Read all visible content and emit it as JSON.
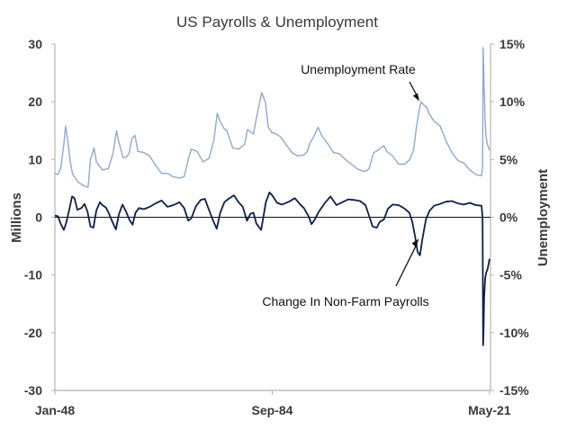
{
  "chart_data": {
    "type": "line",
    "title": "US Payrolls & Unemployment",
    "xlabel": "",
    "ylabel_left": "Millions",
    "ylabel_right": "Unemployment",
    "ylim_left": [
      -30,
      30
    ],
    "ylim_right": [
      -15,
      15
    ],
    "yticks_left": [
      "30",
      "20",
      "10",
      "0",
      "-10",
      "-20",
      "-30"
    ],
    "yticks_right": [
      "15%",
      "10%",
      "5%",
      "0%",
      "-5%",
      "-10%",
      "-15%"
    ],
    "x_ticks": [
      "Jan-48",
      "Sep-84",
      "May-21"
    ],
    "x_tick_years": [
      1948,
      1984.67,
      2021.33
    ],
    "x_range": [
      1948,
      2021.5
    ],
    "grid": false,
    "colors": {
      "unemployment": "#8fa8d2",
      "payrolls": "#0c1f4a",
      "axis": "#b3b3b3"
    },
    "annotations": [
      {
        "text": "Unemployment Rate",
        "x": 2009.8,
        "y": 9.9,
        "axis": "right"
      },
      {
        "text": "Change In Non-Farm Payrolls",
        "x": 2009.3,
        "y": -3.4,
        "axis": "left"
      }
    ],
    "series": [
      {
        "name": "Unemployment Rate",
        "axis": "right",
        "points": [
          [
            1948,
            3.8
          ],
          [
            1948.5,
            3.7
          ],
          [
            1949,
            4.3
          ],
          [
            1949.5,
            6.3
          ],
          [
            1949.8,
            7.9
          ],
          [
            1950.2,
            6.5
          ],
          [
            1950.6,
            4.8
          ],
          [
            1951,
            3.7
          ],
          [
            1952,
            3.0
          ],
          [
            1953,
            2.7
          ],
          [
            1953.6,
            2.6
          ],
          [
            1954,
            5.0
          ],
          [
            1954.6,
            6.0
          ],
          [
            1955,
            4.8
          ],
          [
            1956,
            4.1
          ],
          [
            1957,
            4.2
          ],
          [
            1957.8,
            5.5
          ],
          [
            1958.4,
            7.5
          ],
          [
            1958.8,
            6.5
          ],
          [
            1959.5,
            5.2
          ],
          [
            1960,
            5.2
          ],
          [
            1960.5,
            5.5
          ],
          [
            1961,
            6.8
          ],
          [
            1961.5,
            7.1
          ],
          [
            1962,
            5.7
          ],
          [
            1963,
            5.6
          ],
          [
            1964,
            5.3
          ],
          [
            1965,
            4.5
          ],
          [
            1966,
            3.8
          ],
          [
            1967,
            3.8
          ],
          [
            1968,
            3.5
          ],
          [
            1969,
            3.4
          ],
          [
            1969.8,
            3.5
          ],
          [
            1970.5,
            5.0
          ],
          [
            1971,
            5.9
          ],
          [
            1972,
            5.7
          ],
          [
            1973,
            4.8
          ],
          [
            1974,
            5.1
          ],
          [
            1974.8,
            6.6
          ],
          [
            1975.4,
            9.0
          ],
          [
            1975.8,
            8.4
          ],
          [
            1976.5,
            7.7
          ],
          [
            1977,
            7.5
          ],
          [
            1978,
            6.0
          ],
          [
            1979,
            5.9
          ],
          [
            1980,
            6.3
          ],
          [
            1980.5,
            7.6
          ],
          [
            1981,
            7.4
          ],
          [
            1981.5,
            7.2
          ],
          [
            1982,
            8.6
          ],
          [
            1982.9,
            10.8
          ],
          [
            1983.5,
            10.0
          ],
          [
            1984,
            7.8
          ],
          [
            1984.67,
            7.3
          ],
          [
            1985,
            7.3
          ],
          [
            1986,
            7.0
          ],
          [
            1987,
            6.3
          ],
          [
            1988,
            5.6
          ],
          [
            1989,
            5.3
          ],
          [
            1990,
            5.4
          ],
          [
            1990.6,
            5.7
          ],
          [
            1991,
            6.4
          ],
          [
            1991.6,
            6.9
          ],
          [
            1992.4,
            7.8
          ],
          [
            1993,
            7.1
          ],
          [
            1994,
            6.4
          ],
          [
            1995,
            5.6
          ],
          [
            1996,
            5.5
          ],
          [
            1997,
            5.0
          ],
          [
            1998,
            4.6
          ],
          [
            1999,
            4.2
          ],
          [
            2000,
            4.0
          ],
          [
            2000.5,
            4.0
          ],
          [
            2001,
            4.2
          ],
          [
            2001.8,
            5.6
          ],
          [
            2002.5,
            5.8
          ],
          [
            2003.5,
            6.2
          ],
          [
            2004,
            5.7
          ],
          [
            2005,
            5.3
          ],
          [
            2006,
            4.6
          ],
          [
            2007,
            4.6
          ],
          [
            2007.9,
            5.0
          ],
          [
            2008.5,
            5.8
          ],
          [
            2009,
            7.8
          ],
          [
            2009.5,
            9.4
          ],
          [
            2009.8,
            10.0
          ],
          [
            2010.3,
            9.7
          ],
          [
            2010.8,
            9.5
          ],
          [
            2011,
            9.1
          ],
          [
            2012,
            8.3
          ],
          [
            2013,
            7.9
          ],
          [
            2014,
            6.6
          ],
          [
            2015,
            5.6
          ],
          [
            2016,
            4.9
          ],
          [
            2017,
            4.7
          ],
          [
            2018,
            4.1
          ],
          [
            2019,
            3.7
          ],
          [
            2020,
            3.6
          ],
          [
            2020.17,
            4.4
          ],
          [
            2020.25,
            14.7
          ],
          [
            2020.33,
            13.3
          ],
          [
            2020.42,
            11.1
          ],
          [
            2020.5,
            10.2
          ],
          [
            2020.58,
            8.4
          ],
          [
            2020.75,
            6.9
          ],
          [
            2021,
            6.3
          ],
          [
            2021.33,
            5.8
          ]
        ]
      },
      {
        "name": "Change In Non-Farm Payrolls",
        "axis": "left",
        "points": [
          [
            1948,
            0.3
          ],
          [
            1948.5,
            0.2
          ],
          [
            1949,
            -1.2
          ],
          [
            1949.5,
            -2.2
          ],
          [
            1949.9,
            -1.0
          ],
          [
            1950.4,
            1.2
          ],
          [
            1950.9,
            3.6
          ],
          [
            1951.3,
            3.3
          ],
          [
            1951.8,
            1.3
          ],
          [
            1952.5,
            1.6
          ],
          [
            1953,
            2.3
          ],
          [
            1953.5,
            1.0
          ],
          [
            1954,
            -1.6
          ],
          [
            1954.5,
            -1.8
          ],
          [
            1955,
            1.2
          ],
          [
            1955.6,
            2.6
          ],
          [
            1956,
            2.1
          ],
          [
            1956.6,
            1.7
          ],
          [
            1957,
            0.9
          ],
          [
            1957.7,
            -0.8
          ],
          [
            1958.3,
            -2.1
          ],
          [
            1958.8,
            0.5
          ],
          [
            1959.4,
            2.2
          ],
          [
            1960,
            1.0
          ],
          [
            1960.6,
            -0.5
          ],
          [
            1961.1,
            -1.3
          ],
          [
            1961.6,
            0.8
          ],
          [
            1962.2,
            1.6
          ],
          [
            1963,
            1.4
          ],
          [
            1964,
            1.8
          ],
          [
            1965,
            2.4
          ],
          [
            1966,
            2.9
          ],
          [
            1967,
            1.8
          ],
          [
            1968,
            2.1
          ],
          [
            1969,
            2.6
          ],
          [
            1969.8,
            1.6
          ],
          [
            1970.5,
            -0.6
          ],
          [
            1971,
            -0.2
          ],
          [
            1971.8,
            1.9
          ],
          [
            1972.6,
            3.0
          ],
          [
            1973.3,
            3.2
          ],
          [
            1974,
            1.3
          ],
          [
            1974.7,
            -0.6
          ],
          [
            1975.3,
            -2.0
          ],
          [
            1975.9,
            0.8
          ],
          [
            1976.6,
            2.6
          ],
          [
            1977.3,
            3.2
          ],
          [
            1978.2,
            3.8
          ],
          [
            1979,
            2.6
          ],
          [
            1979.7,
            1.8
          ],
          [
            1980.4,
            -0.6
          ],
          [
            1981,
            0.6
          ],
          [
            1981.5,
            0.8
          ],
          [
            1982,
            -1.1
          ],
          [
            1982.8,
            -2.2
          ],
          [
            1983.6,
            2.6
          ],
          [
            1984.2,
            4.3
          ],
          [
            1984.67,
            3.8
          ],
          [
            1985.5,
            2.5
          ],
          [
            1986.3,
            2.2
          ],
          [
            1987.5,
            2.7
          ],
          [
            1988.5,
            3.3
          ],
          [
            1989.3,
            2.3
          ],
          [
            1990,
            1.6
          ],
          [
            1990.8,
            0.2
          ],
          [
            1991.3,
            -1.2
          ],
          [
            1991.8,
            -0.5
          ],
          [
            1992.5,
            0.9
          ],
          [
            1993.5,
            2.4
          ],
          [
            1994.5,
            3.6
          ],
          [
            1995.5,
            2.1
          ],
          [
            1996.5,
            2.6
          ],
          [
            1997.5,
            3.1
          ],
          [
            1998.5,
            3.0
          ],
          [
            1999.5,
            2.8
          ],
          [
            2000.4,
            2.1
          ],
          [
            2001,
            0.3
          ],
          [
            2001.6,
            -1.6
          ],
          [
            2002.3,
            -1.8
          ],
          [
            2002.8,
            -0.8
          ],
          [
            2003.5,
            -0.4
          ],
          [
            2004.2,
            1.5
          ],
          [
            2005,
            2.2
          ],
          [
            2006,
            2.1
          ],
          [
            2007,
            1.5
          ],
          [
            2007.8,
            0.8
          ],
          [
            2008.3,
            -0.8
          ],
          [
            2008.8,
            -3.5
          ],
          [
            2009.2,
            -6.0
          ],
          [
            2009.6,
            -6.6
          ],
          [
            2010,
            -3.8
          ],
          [
            2010.6,
            -0.4
          ],
          [
            2011.2,
            1.1
          ],
          [
            2012,
            2.0
          ],
          [
            2013,
            2.3
          ],
          [
            2014,
            2.7
          ],
          [
            2015,
            2.8
          ],
          [
            2016,
            2.4
          ],
          [
            2017,
            2.2
          ],
          [
            2018,
            2.5
          ],
          [
            2019,
            2.1
          ],
          [
            2020,
            2.0
          ],
          [
            2020.17,
            -0.2
          ],
          [
            2020.25,
            -22.2
          ],
          [
            2020.33,
            -19.5
          ],
          [
            2020.42,
            -14.0
          ],
          [
            2020.6,
            -10.5
          ],
          [
            2020.8,
            -9.5
          ],
          [
            2021,
            -9.0
          ],
          [
            2021.2,
            -8.0
          ],
          [
            2021.33,
            -7.2
          ]
        ]
      }
    ]
  }
}
